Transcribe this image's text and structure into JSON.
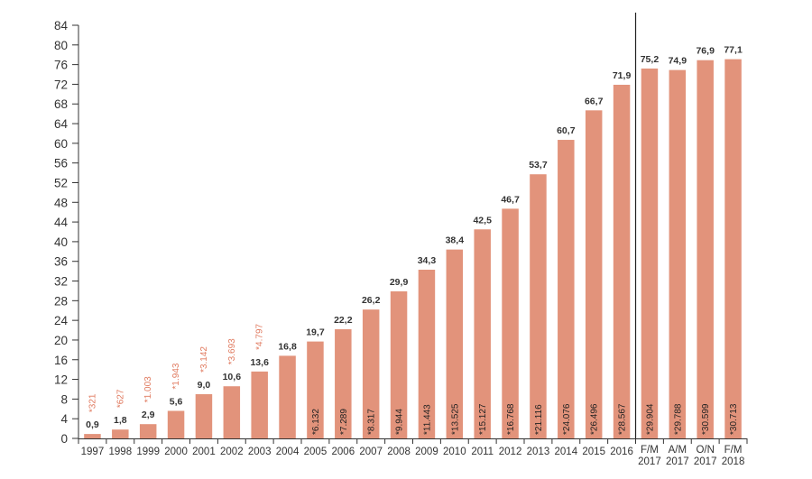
{
  "chart_data": {
    "type": "bar",
    "title": "",
    "xlabel": "",
    "ylabel": "",
    "ylim": [
      0,
      84
    ],
    "yticks": [
      0,
      4,
      8,
      12,
      16,
      20,
      24,
      28,
      32,
      36,
      40,
      44,
      48,
      52,
      56,
      60,
      64,
      68,
      72,
      76,
      80,
      84
    ],
    "grid": false,
    "colors": {
      "bar": "#e2937b",
      "outside_label": "#e07a5f",
      "axis": "#333333"
    },
    "categories": [
      [
        "1997"
      ],
      [
        "1998"
      ],
      [
        "1999"
      ],
      [
        "2000"
      ],
      [
        "2001"
      ],
      [
        "2002"
      ],
      [
        "2003"
      ],
      [
        "2004"
      ],
      [
        "2005"
      ],
      [
        "2006"
      ],
      [
        "2007"
      ],
      [
        "2008"
      ],
      [
        "2009"
      ],
      [
        "2010"
      ],
      [
        "2011"
      ],
      [
        "2012"
      ],
      [
        "2013"
      ],
      [
        "2014"
      ],
      [
        "2015"
      ],
      [
        "2016"
      ],
      [
        "F/M",
        "2017"
      ],
      [
        "A/M",
        "2017"
      ],
      [
        "O/N",
        "2017"
      ],
      [
        "F/M",
        "2018"
      ]
    ],
    "value_labels": [
      "0,9",
      "1,8",
      "2,9",
      "5,6",
      "9,0",
      "10,6",
      "13,6",
      "16,8",
      "19,7",
      "22,2",
      "26,2",
      "29,9",
      "34,3",
      "38,4",
      "42,5",
      "46,7",
      "53,7",
      "60,7",
      "66,7",
      "71,9",
      "75,2",
      "74,9",
      "76,9",
      "77,1"
    ],
    "values": [
      0.9,
      1.8,
      2.9,
      5.6,
      9.0,
      10.6,
      13.6,
      16.8,
      19.7,
      22.2,
      26.2,
      29.9,
      34.3,
      38.4,
      42.5,
      46.7,
      53.7,
      60.7,
      66.7,
      71.9,
      75.2,
      74.9,
      76.9,
      77.1
    ],
    "count_labels": [
      "*321",
      "*627",
      "*1.003",
      "*1.943",
      "*3.142",
      "*3.693",
      "*4.797",
      "",
      "*6.132",
      "*7.289",
      "*8.317",
      "*9.944",
      "*11.443",
      "*13.525",
      "*15.127",
      "*16.768",
      "*21.116",
      "*24.076",
      "*26.496",
      "*28.567",
      "*29.904",
      "*29.788",
      "*30.599",
      "*30.713"
    ],
    "count_label_outside": [
      true,
      true,
      true,
      true,
      true,
      true,
      true,
      false,
      false,
      false,
      false,
      false,
      false,
      false,
      false,
      false,
      false,
      false,
      false,
      false,
      false,
      false,
      false,
      false
    ],
    "separator_after_index": 19
  }
}
